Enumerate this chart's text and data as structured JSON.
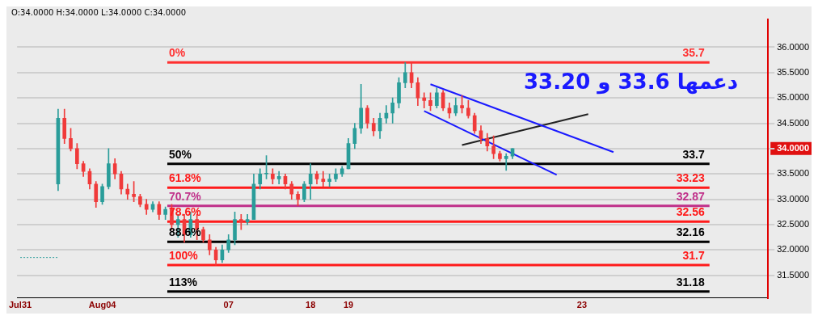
{
  "chart_data": {
    "type": "candlestick",
    "categories": [
      "Jul31",
      null,
      null,
      null,
      null,
      null,
      null,
      null,
      null,
      null,
      null,
      null,
      null,
      "Aug04",
      null,
      null,
      null,
      null,
      null,
      null,
      null,
      null,
      null,
      null,
      null,
      null,
      null,
      null,
      null,
      null,
      null,
      null,
      null,
      "07",
      null,
      null,
      null,
      null,
      null,
      null,
      null,
      null,
      null,
      null,
      null,
      null,
      "18",
      null,
      null,
      null,
      null,
      null,
      "19",
      null,
      null,
      null,
      null,
      null,
      null,
      null,
      null,
      null,
      null,
      null,
      null,
      null,
      null,
      null,
      null,
      null,
      null,
      null,
      null,
      null,
      null,
      null,
      null,
      null,
      null,
      null,
      null,
      null,
      null,
      null,
      null,
      null,
      null,
      null,
      null,
      "23",
      null,
      null,
      null,
      null,
      null,
      null,
      null,
      null,
      null,
      null,
      null,
      null,
      null,
      null,
      null,
      null,
      null,
      null,
      null,
      null,
      null,
      null,
      null,
      null,
      null,
      null,
      null,
      null,
      null
    ],
    "series": [
      {
        "type": "candlestick",
        "ohlc": [
          null,
          null,
          null,
          null,
          null,
          null,
          [
            33.3,
            34.78,
            33.17,
            34.6
          ],
          [
            34.6,
            34.78,
            34.1,
            34.2
          ],
          [
            34.2,
            34.4,
            33.95,
            34.0
          ],
          [
            34.0,
            34.1,
            33.6,
            33.7
          ],
          [
            33.7,
            33.75,
            33.45,
            33.55
          ],
          [
            33.55,
            33.6,
            33.2,
            33.3
          ],
          [
            33.3,
            33.35,
            32.84,
            32.95
          ],
          [
            32.95,
            33.3,
            32.9,
            33.25
          ],
          [
            33.25,
            34.0,
            33.2,
            33.7
          ],
          [
            33.7,
            33.8,
            33.4,
            33.5
          ],
          [
            33.5,
            33.55,
            33.1,
            33.2
          ],
          [
            33.2,
            33.3,
            33.0,
            33.1
          ],
          [
            33.1,
            33.35,
            32.95,
            33.05
          ],
          [
            33.05,
            33.1,
            32.85,
            32.9
          ],
          [
            32.9,
            33.0,
            32.7,
            32.8
          ],
          [
            32.8,
            32.95,
            32.75,
            32.9
          ],
          [
            32.9,
            32.95,
            32.6,
            32.7
          ],
          [
            32.7,
            32.85,
            32.6,
            32.8
          ],
          [
            32.8,
            32.9,
            32.4,
            32.5
          ],
          [
            32.5,
            32.7,
            32.25,
            32.6
          ],
          [
            32.6,
            32.7,
            32.15,
            32.3
          ],
          [
            32.3,
            32.75,
            32.25,
            32.6
          ],
          [
            32.6,
            32.7,
            32.2,
            32.4
          ],
          [
            32.4,
            32.45,
            32.15,
            32.2
          ],
          [
            32.2,
            32.3,
            31.9,
            32.0
          ],
          [
            32.0,
            32.05,
            31.7,
            31.8
          ],
          [
            31.8,
            32.1,
            31.75,
            32.0
          ],
          [
            32.0,
            32.3,
            31.95,
            32.2
          ],
          [
            32.2,
            32.75,
            32.1,
            32.6
          ],
          [
            32.6,
            32.7,
            32.4,
            32.55
          ],
          [
            32.55,
            32.7,
            32.5,
            32.6
          ],
          [
            32.6,
            33.5,
            32.6,
            33.3
          ],
          [
            33.3,
            33.6,
            33.2,
            33.5
          ],
          [
            33.5,
            33.86,
            33.4,
            33.5
          ],
          [
            33.5,
            33.6,
            33.3,
            33.4
          ],
          [
            33.4,
            33.55,
            33.3,
            33.45
          ],
          [
            33.45,
            33.5,
            33.2,
            33.3
          ],
          [
            33.3,
            33.35,
            33.0,
            33.1
          ],
          [
            33.1,
            33.15,
            32.87,
            33.0
          ],
          [
            33.0,
            33.35,
            32.95,
            33.3
          ],
          [
            33.3,
            33.7,
            33.0,
            33.5
          ],
          [
            33.5,
            33.55,
            33.3,
            33.4
          ],
          [
            33.4,
            33.55,
            33.25,
            33.35
          ],
          [
            33.35,
            33.5,
            33.25,
            33.4
          ],
          [
            33.4,
            33.6,
            33.35,
            33.5
          ],
          [
            33.5,
            33.65,
            33.45,
            33.6
          ],
          [
            33.6,
            34.2,
            33.6,
            34.1
          ],
          [
            34.1,
            34.5,
            34.0,
            34.4
          ],
          [
            34.4,
            35.27,
            34.3,
            34.8
          ],
          [
            34.8,
            34.85,
            34.4,
            34.5
          ],
          [
            34.5,
            34.6,
            34.25,
            34.35
          ],
          [
            34.35,
            34.7,
            34.2,
            34.6
          ],
          [
            34.6,
            34.85,
            34.5,
            34.7
          ],
          [
            34.7,
            35.0,
            34.5,
            34.9
          ],
          [
            34.9,
            35.4,
            34.8,
            35.3
          ],
          [
            35.3,
            35.7,
            35.2,
            35.5
          ],
          [
            35.5,
            35.7,
            35.2,
            35.3
          ],
          [
            35.3,
            35.4,
            34.85,
            35.0
          ],
          [
            35.0,
            35.1,
            34.8,
            34.95
          ],
          [
            34.95,
            35.1,
            34.75,
            34.85
          ],
          [
            34.85,
            35.2,
            34.8,
            35.1
          ],
          [
            35.1,
            35.15,
            34.75,
            34.8
          ],
          [
            34.8,
            34.9,
            34.6,
            34.7
          ],
          [
            34.7,
            35.0,
            34.65,
            34.85
          ],
          [
            34.85,
            35.05,
            34.7,
            34.8
          ],
          [
            34.8,
            34.95,
            34.6,
            34.65
          ],
          [
            34.65,
            34.7,
            34.3,
            34.35
          ],
          [
            34.35,
            34.45,
            34.1,
            34.2
          ],
          [
            34.2,
            34.3,
            33.95,
            34.05
          ],
          [
            34.05,
            34.25,
            33.8,
            33.9
          ],
          [
            33.9,
            33.95,
            33.75,
            33.8
          ],
          [
            33.8,
            33.9,
            33.57,
            33.85
          ],
          [
            33.85,
            34.0,
            33.8,
            34.0
          ],
          null,
          null,
          null,
          null,
          null,
          null,
          null,
          null,
          null,
          null,
          null,
          null,
          null,
          null,
          null,
          null,
          null,
          null,
          null,
          null,
          null,
          null,
          null,
          null,
          null,
          null,
          null,
          null,
          null,
          null,
          null,
          null,
          null,
          null,
          null,
          null,
          null,
          null,
          null,
          null
        ]
      },
      {
        "type": "line",
        "color": "#1a1aff",
        "values": [
          null,
          null,
          null,
          null,
          null,
          null,
          null,
          null,
          null,
          null,
          null,
          null,
          null,
          null,
          null,
          null,
          null,
          null,
          null,
          null,
          null,
          null,
          null,
          null,
          null,
          null,
          null,
          null,
          null,
          null,
          null,
          null,
          null,
          null,
          null,
          null,
          null,
          null,
          null,
          null,
          null,
          null,
          null,
          null,
          null,
          null,
          null,
          null,
          null,
          null,
          null,
          null,
          null,
          null,
          null,
          null,
          null,
          null,
          null,
          null,
          null,
          null,
          null,
          null,
          null,
          35.27,
          null,
          null,
          null,
          null,
          null,
          null,
          null,
          null,
          null,
          null,
          null,
          null,
          null,
          null,
          null,
          null,
          null,
          null,
          null,
          null,
          null,
          null,
          null,
          null,
          null,
          null,
          null,
          null,
          33.93,
          null,
          null,
          null,
          null,
          null,
          null,
          null,
          null,
          null,
          null,
          null,
          null,
          null,
          null,
          null,
          null,
          null,
          null,
          null,
          null,
          null,
          null,
          null,
          null
        ]
      },
      {
        "type": "line",
        "color": "#1a1aff",
        "values": [
          null,
          null,
          null,
          null,
          null,
          null,
          null,
          null,
          null,
          null,
          null,
          null,
          null,
          null,
          null,
          null,
          null,
          null,
          null,
          null,
          null,
          null,
          null,
          null,
          null,
          null,
          null,
          null,
          null,
          null,
          null,
          null,
          null,
          null,
          null,
          null,
          null,
          null,
          null,
          null,
          null,
          null,
          null,
          null,
          null,
          null,
          null,
          null,
          null,
          null,
          null,
          null,
          null,
          null,
          null,
          null,
          null,
          null,
          null,
          null,
          null,
          null,
          null,
          null,
          34.74,
          null,
          null,
          null,
          null,
          null,
          null,
          null,
          null,
          null,
          null,
          null,
          null,
          null,
          null,
          null,
          null,
          null,
          null,
          null,
          null,
          33.48,
          null,
          null,
          null,
          null,
          null,
          null,
          null,
          null,
          null,
          null,
          null,
          null,
          null,
          null,
          null,
          null,
          null,
          null,
          null,
          null,
          null,
          null,
          null,
          null,
          null,
          null,
          null,
          null,
          null,
          null,
          null,
          null,
          null
        ]
      },
      {
        "type": "line",
        "color": "#222222",
        "values": [
          null,
          null,
          null,
          null,
          null,
          null,
          null,
          null,
          null,
          null,
          null,
          null,
          null,
          null,
          null,
          null,
          null,
          null,
          null,
          null,
          null,
          null,
          null,
          null,
          null,
          null,
          null,
          null,
          null,
          null,
          null,
          null,
          null,
          null,
          null,
          null,
          null,
          null,
          null,
          null,
          null,
          null,
          null,
          null,
          null,
          null,
          null,
          null,
          null,
          null,
          null,
          null,
          null,
          null,
          null,
          null,
          null,
          null,
          null,
          null,
          null,
          null,
          null,
          null,
          null,
          null,
          null,
          null,
          null,
          null,
          34.07,
          null,
          null,
          null,
          null,
          null,
          null,
          null,
          null,
          null,
          null,
          null,
          null,
          null,
          null,
          null,
          null,
          null,
          null,
          null,
          34.68,
          null,
          null,
          null,
          null,
          null,
          null,
          null,
          null,
          null,
          null,
          null,
          null,
          null,
          null,
          null,
          null,
          null,
          null,
          null,
          null,
          null,
          null,
          null,
          null,
          null,
          null,
          null,
          null
        ]
      },
      {
        "type": "line",
        "color": "#2a9d9a",
        "line_style": "dotted",
        "values": [
          31.85,
          null,
          null,
          null,
          null,
          null,
          31.85,
          null,
          null,
          null,
          null,
          null,
          null,
          null,
          null,
          null,
          null,
          null,
          null,
          null,
          null,
          null,
          null,
          null,
          null,
          null,
          null,
          null,
          null,
          null,
          null,
          null,
          null,
          null,
          null,
          null,
          null,
          null,
          null,
          null,
          null,
          null,
          null,
          null,
          null,
          null,
          null,
          null,
          null,
          null,
          null,
          null,
          null,
          null,
          null,
          null,
          null,
          null,
          null,
          null,
          null,
          null,
          null,
          null,
          null,
          null,
          null,
          null,
          null,
          null,
          null,
          null,
          null,
          null,
          null,
          null,
          null,
          null,
          null,
          null,
          null,
          null,
          null,
          null,
          null,
          null,
          null,
          null,
          null,
          null,
          null,
          null,
          null,
          null,
          null,
          null,
          null,
          null,
          null,
          null,
          null,
          null,
          null,
          null,
          null,
          null,
          null,
          null,
          null,
          null,
          null,
          null,
          null,
          null,
          null,
          null,
          null,
          null,
          null
        ]
      }
    ],
    "ylim": [
      31.05,
      36.55
    ],
    "yticks": [
      {
        "value": 31.5,
        "label": "31.5000"
      },
      {
        "value": 32,
        "label": "32.0000"
      },
      {
        "value": 32.5,
        "label": "32.5000"
      },
      {
        "value": 33,
        "label": "33.0000"
      },
      {
        "value": 33.5,
        "label": "33.5000"
      },
      {
        "value": 34,
        "label": "34.0000"
      },
      {
        "value": 34.5,
        "label": "34.5000"
      },
      {
        "value": 35,
        "label": "35.0000"
      },
      {
        "value": 35.5,
        "label": "35.5000"
      },
      {
        "value": 36,
        "label": "36.0000"
      }
    ],
    "grid": "y",
    "legend": false,
    "ref_lines": [
      {
        "axis": "y",
        "value": 35.7,
        "label": "35.7",
        "color": "#ff3030"
      },
      {
        "axis": "y",
        "value": 33.7,
        "label": "33.7",
        "color": "#000000"
      },
      {
        "axis": "y",
        "value": 33.23,
        "label": "33.23",
        "color": "#ff1a1a"
      },
      {
        "axis": "y",
        "value": 32.87,
        "label": "32.87",
        "color": "#c0308a"
      },
      {
        "axis": "y",
        "value": 32.56,
        "label": "32.56",
        "color": "#ff1a1a"
      },
      {
        "axis": "y",
        "value": 32.16,
        "label": "32.16",
        "color": "#000000"
      },
      {
        "axis": "y",
        "value": 31.7,
        "label": "31.7",
        "color": "#ff1a1a"
      },
      {
        "axis": "y",
        "value": 31.18,
        "label": "31.18",
        "color": "#000000"
      }
    ],
    "annotations": [
      "O:34.0000  H:34.0000  L:34.0000  C:34.0000",
      "دعمها 33.6 و 33.20",
      {
        "text": "0%",
        "y": 35.7
      },
      {
        "text": "50%",
        "y": 33.7
      },
      {
        "text": "61.8%",
        "y": 33.23
      },
      {
        "text": "70.7%",
        "y": 32.87
      },
      {
        "text": "78.6%",
        "y": 32.56
      },
      {
        "text": "88.6%",
        "y": 32.16
      },
      {
        "text": "100%",
        "y": 31.7
      },
      {
        "text": "113%",
        "y": 31.18
      }
    ]
  }
}
